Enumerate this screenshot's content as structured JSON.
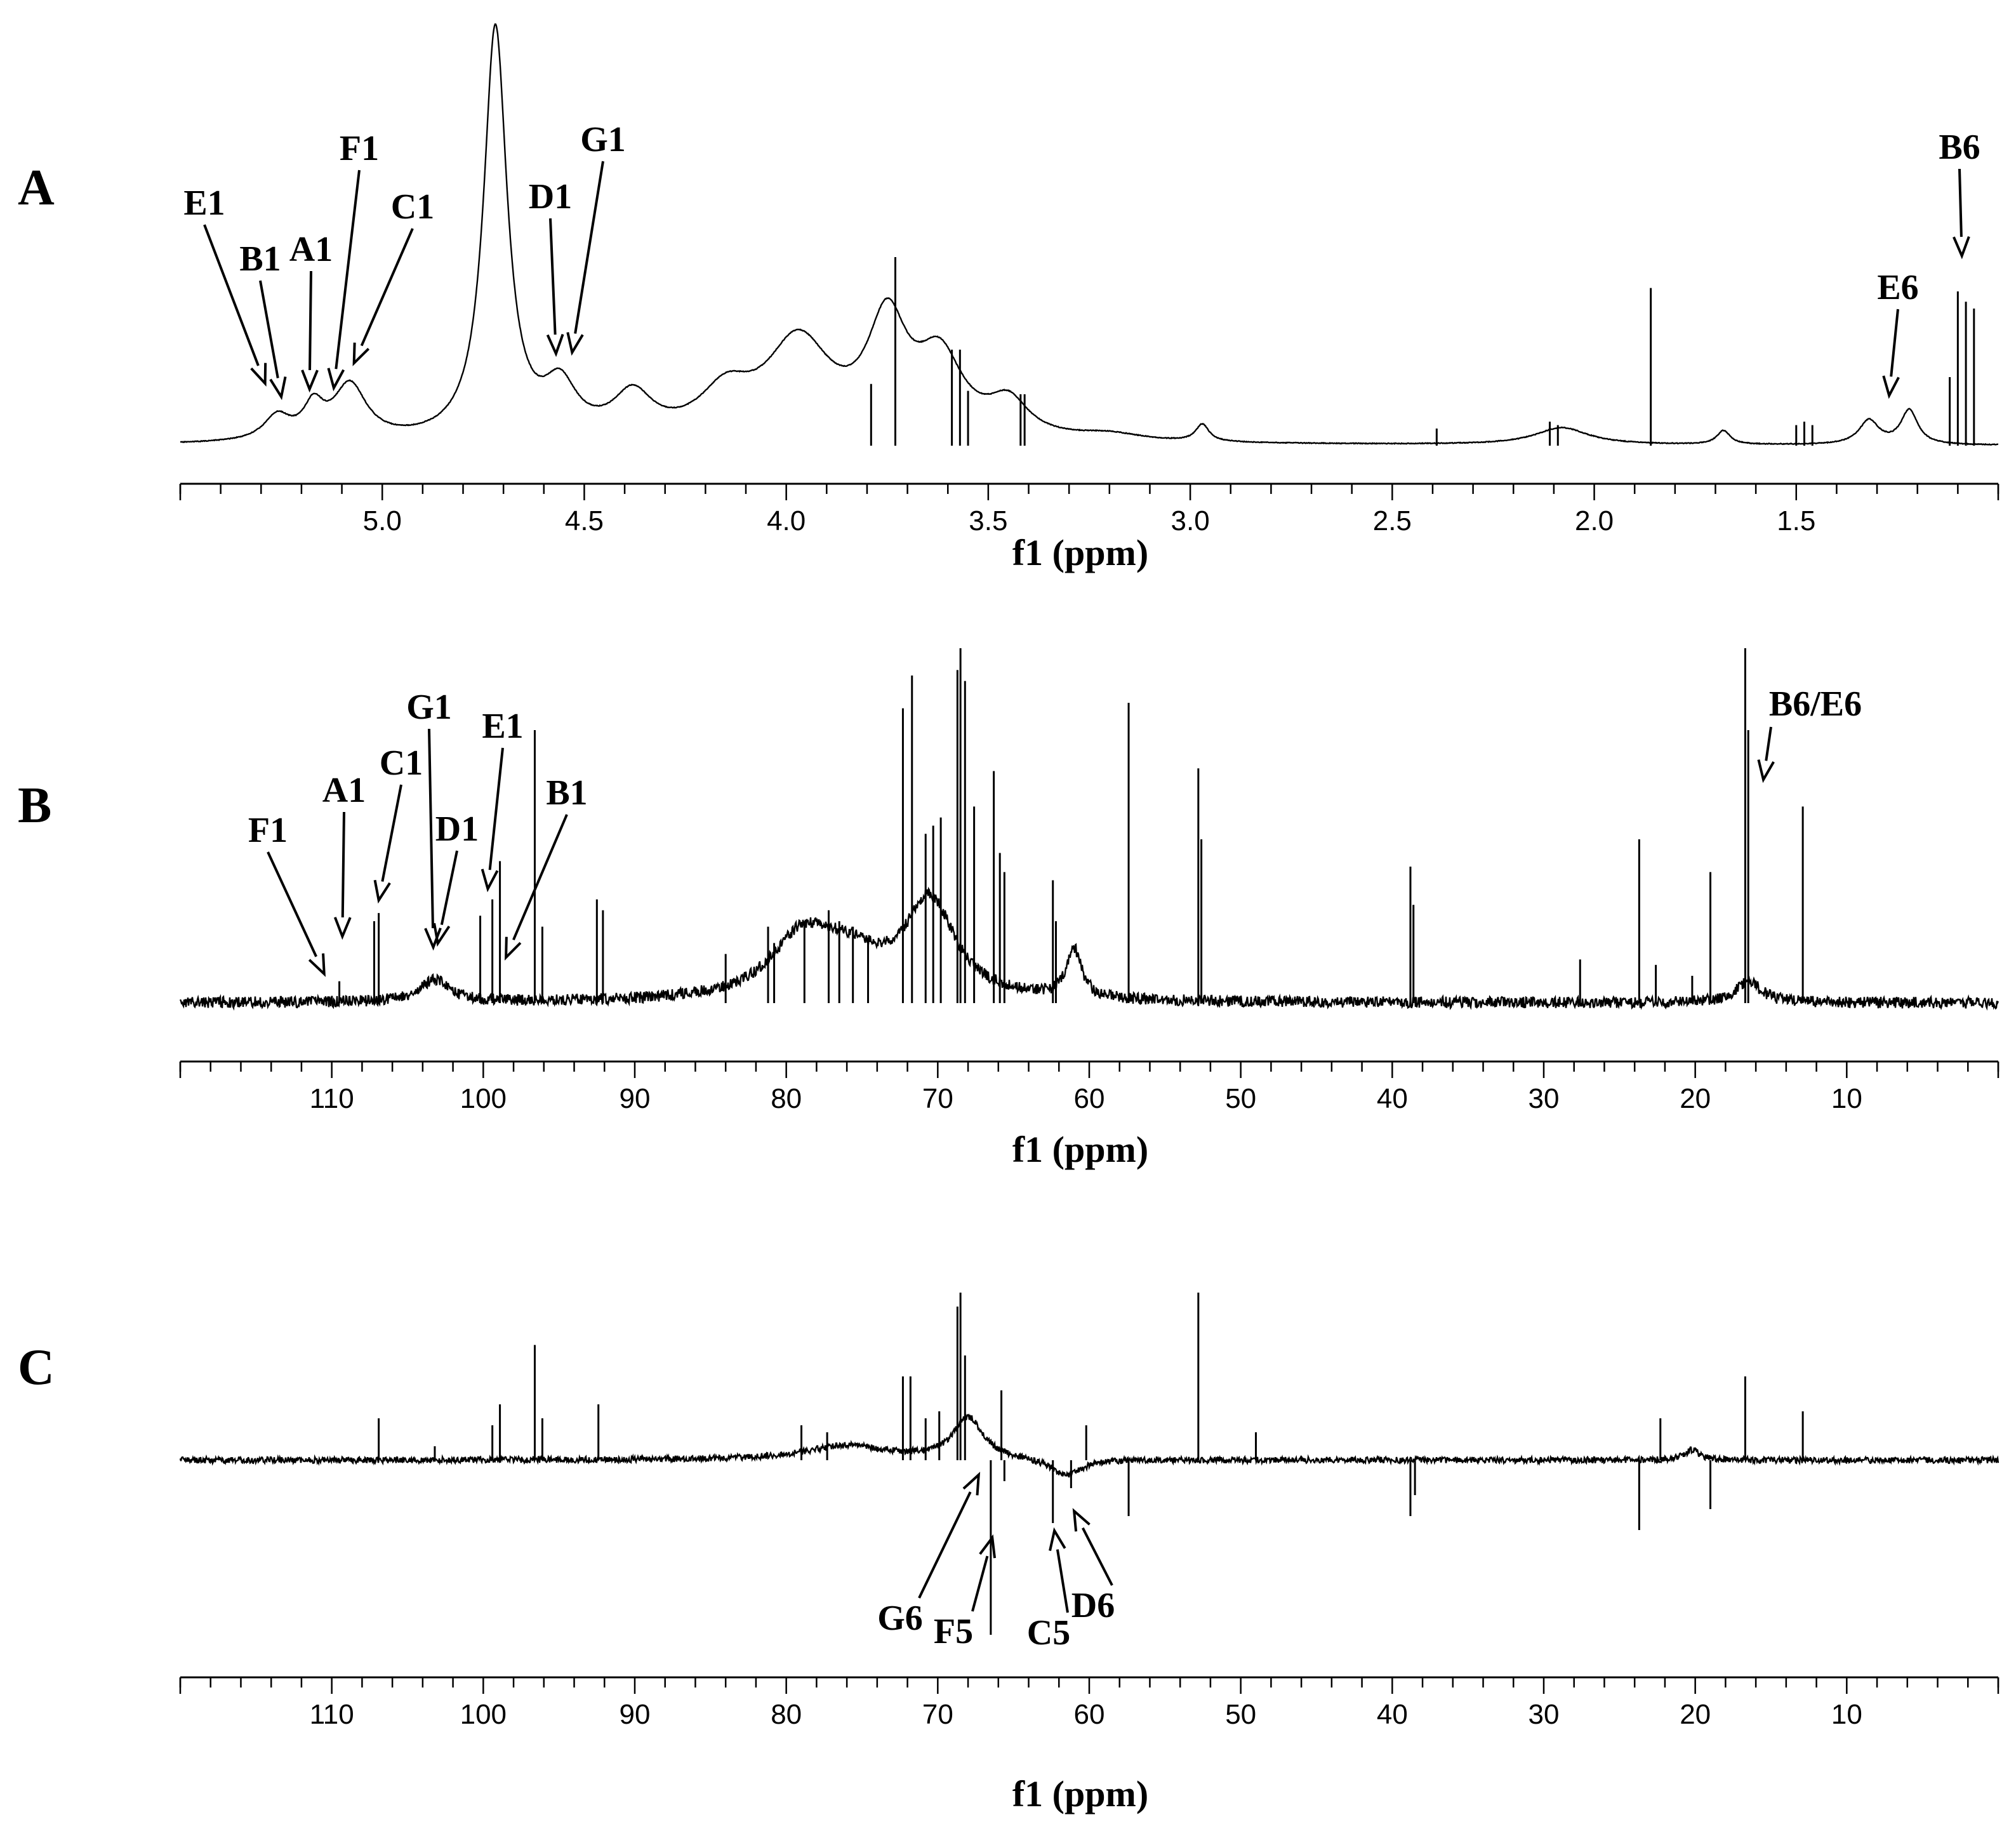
{
  "colors": {
    "line": "#000000",
    "background": "#ffffff"
  },
  "chart_data": [
    {
      "panel": "A",
      "type": "line",
      "xlabel": "f1 (ppm)",
      "xlim": [
        5.5,
        1.0
      ],
      "reversed_x": true,
      "ticks": [
        {
          "value": 5.0,
          "label": "5.0"
        },
        {
          "value": 4.5,
          "label": "4.5"
        },
        {
          "value": 4.0,
          "label": "4.0"
        },
        {
          "value": 3.5,
          "label": "3.5"
        },
        {
          "value": 3.0,
          "label": "3.0"
        },
        {
          "value": 2.5,
          "label": "2.5"
        },
        {
          "value": 2.0,
          "label": "2.0"
        },
        {
          "value": 1.5,
          "label": "1.5"
        }
      ],
      "broad_bands": [
        {
          "center": 5.26,
          "width": 0.04,
          "height": 0.07
        },
        {
          "center": 5.17,
          "width": 0.03,
          "height": 0.09
        },
        {
          "center": 5.08,
          "width": 0.05,
          "height": 0.16
        },
        {
          "center": 4.72,
          "width": 0.035,
          "height": 1.2
        },
        {
          "center": 4.56,
          "width": 0.05,
          "height": 0.14
        },
        {
          "center": 4.38,
          "width": 0.06,
          "height": 0.12
        },
        {
          "center": 4.15,
          "width": 0.08,
          "height": 0.12
        },
        {
          "center": 3.97,
          "width": 0.1,
          "height": 0.28
        },
        {
          "center": 3.75,
          "width": 0.06,
          "height": 0.32
        },
        {
          "center": 3.62,
          "width": 0.07,
          "height": 0.22
        },
        {
          "center": 3.45,
          "width": 0.06,
          "height": 0.1
        },
        {
          "center": 3.2,
          "width": 0.1,
          "height": 0.02
        },
        {
          "center": 2.97,
          "width": 0.02,
          "height": 0.05
        },
        {
          "center": 2.08,
          "width": 0.08,
          "height": 0.05
        },
        {
          "center": 1.68,
          "width": 0.02,
          "height": 0.04
        },
        {
          "center": 1.32,
          "width": 0.03,
          "height": 0.07
        },
        {
          "center": 1.22,
          "width": 0.025,
          "height": 0.1
        }
      ],
      "sharp_peaks": [
        {
          "x": 3.73,
          "height": 0.55
        },
        {
          "x": 3.79,
          "height": 0.18
        },
        {
          "x": 3.59,
          "height": 0.28
        },
        {
          "x": 3.57,
          "height": 0.28
        },
        {
          "x": 3.55,
          "height": 0.16
        },
        {
          "x": 3.42,
          "height": 0.15
        },
        {
          "x": 3.41,
          "height": 0.15
        },
        {
          "x": 2.39,
          "height": 0.05
        },
        {
          "x": 2.11,
          "height": 0.07
        },
        {
          "x": 2.09,
          "height": 0.06
        },
        {
          "x": 1.86,
          "height": 0.46
        },
        {
          "x": 1.5,
          "height": 0.06
        },
        {
          "x": 1.48,
          "height": 0.07
        },
        {
          "x": 1.46,
          "height": 0.06
        },
        {
          "x": 1.08,
          "height": 0.42
        },
        {
          "x": 1.1,
          "height": 0.45
        },
        {
          "x": 1.06,
          "height": 0.4
        },
        {
          "x": 1.12,
          "height": 0.2
        }
      ],
      "annotations": [
        {
          "label": "E1",
          "arrow_tip": 5.29
        },
        {
          "label": "B1",
          "arrow_tip": 5.25
        },
        {
          "label": "A1",
          "arrow_tip": 5.18
        },
        {
          "label": "F1",
          "arrow_tip": 5.12
        },
        {
          "label": "C1",
          "arrow_tip": 5.07
        },
        {
          "label": "D1",
          "arrow_tip": 4.57
        },
        {
          "label": "G1",
          "arrow_tip": 4.53
        },
        {
          "label": "E6",
          "arrow_tip": 1.27
        },
        {
          "label": "B6",
          "arrow_tip": 1.09
        }
      ]
    },
    {
      "panel": "B",
      "type": "line",
      "xlabel": "f1 (ppm)",
      "xlim": [
        120,
        0
      ],
      "reversed_x": true,
      "ticks": [
        {
          "value": 110,
          "label": "110"
        },
        {
          "value": 100,
          "label": "100"
        },
        {
          "value": 90,
          "label": "90"
        },
        {
          "value": 80,
          "label": "80"
        },
        {
          "value": 70,
          "label": "70"
        },
        {
          "value": 60,
          "label": "60"
        },
        {
          "value": 50,
          "label": "50"
        },
        {
          "value": 40,
          "label": "40"
        },
        {
          "value": 30,
          "label": "30"
        },
        {
          "value": 20,
          "label": "20"
        },
        {
          "value": 10,
          "label": "10"
        }
      ],
      "broad_bands": [
        {
          "center": 103.2,
          "width": 1.2,
          "height": 0.08
        },
        {
          "center": 79.0,
          "width": 2.5,
          "height": 0.2
        },
        {
          "center": 76.0,
          "width": 3.0,
          "height": 0.14
        },
        {
          "center": 70.5,
          "width": 2.0,
          "height": 0.35
        },
        {
          "center": 61.0,
          "width": 0.6,
          "height": 0.18
        },
        {
          "center": 16.5,
          "width": 1.0,
          "height": 0.08
        }
      ],
      "sharp_peaks": [
        {
          "x": 109.5,
          "height": 0.08
        },
        {
          "x": 107.2,
          "height": 0.3
        },
        {
          "x": 106.9,
          "height": 0.33
        },
        {
          "x": 100.2,
          "height": 0.32
        },
        {
          "x": 99.4,
          "height": 0.38
        },
        {
          "x": 98.9,
          "height": 0.52
        },
        {
          "x": 96.6,
          "height": 1.0
        },
        {
          "x": 96.1,
          "height": 0.28
        },
        {
          "x": 92.5,
          "height": 0.38
        },
        {
          "x": 92.1,
          "height": 0.34
        },
        {
          "x": 84.0,
          "height": 0.18
        },
        {
          "x": 81.2,
          "height": 0.28
        },
        {
          "x": 80.8,
          "height": 0.22
        },
        {
          "x": 78.8,
          "height": 0.3
        },
        {
          "x": 77.2,
          "height": 0.34
        },
        {
          "x": 76.5,
          "height": 0.3
        },
        {
          "x": 75.6,
          "height": 0.28
        },
        {
          "x": 74.6,
          "height": 0.24
        },
        {
          "x": 72.3,
          "height": 1.08
        },
        {
          "x": 71.7,
          "height": 1.2
        },
        {
          "x": 70.8,
          "height": 0.62
        },
        {
          "x": 70.3,
          "height": 0.65
        },
        {
          "x": 69.8,
          "height": 0.68
        },
        {
          "x": 68.7,
          "height": 1.22
        },
        {
          "x": 68.5,
          "height": 1.3
        },
        {
          "x": 68.2,
          "height": 1.18
        },
        {
          "x": 67.6,
          "height": 0.72
        },
        {
          "x": 66.3,
          "height": 0.85
        },
        {
          "x": 65.9,
          "height": 0.55
        },
        {
          "x": 65.6,
          "height": 0.48
        },
        {
          "x": 62.4,
          "height": 0.45
        },
        {
          "x": 62.2,
          "height": 0.3
        },
        {
          "x": 57.4,
          "height": 1.1
        },
        {
          "x": 52.8,
          "height": 0.86
        },
        {
          "x": 52.6,
          "height": 0.6
        },
        {
          "x": 38.8,
          "height": 0.5
        },
        {
          "x": 38.6,
          "height": 0.36
        },
        {
          "x": 27.6,
          "height": 0.16
        },
        {
          "x": 23.7,
          "height": 0.6
        },
        {
          "x": 22.6,
          "height": 0.14
        },
        {
          "x": 19.0,
          "height": 0.48
        },
        {
          "x": 20.2,
          "height": 0.1
        },
        {
          "x": 16.7,
          "height": 1.3
        },
        {
          "x": 16.5,
          "height": 1.0
        },
        {
          "x": 12.9,
          "height": 0.72
        }
      ],
      "annotations": [
        {
          "label": "F1",
          "arrow_tip": 110.5
        },
        {
          "label": "A1",
          "arrow_tip": 109.3
        },
        {
          "label": "C1",
          "arrow_tip": 106.9
        },
        {
          "label": "G1",
          "arrow_tip": 103.3
        },
        {
          "label": "D1",
          "arrow_tip": 103.0
        },
        {
          "label": "E1",
          "arrow_tip": 99.7
        },
        {
          "label": "B1",
          "arrow_tip": 98.5
        },
        {
          "label": "B6/E6",
          "arrow_tip": 16.0
        }
      ]
    },
    {
      "panel": "C",
      "type": "line",
      "xlabel": "f1 (ppm)",
      "xlim": [
        120,
        0
      ],
      "reversed_x": true,
      "ticks": [
        {
          "value": 110,
          "label": "110"
        },
        {
          "value": 100,
          "label": "100"
        },
        {
          "value": 90,
          "label": "90"
        },
        {
          "value": 80,
          "label": "80"
        },
        {
          "value": 70,
          "label": "70"
        },
        {
          "value": 60,
          "label": "60"
        },
        {
          "value": 50,
          "label": "50"
        },
        {
          "value": 40,
          "label": "40"
        },
        {
          "value": 30,
          "label": "30"
        },
        {
          "value": 20,
          "label": "20"
        },
        {
          "value": 10,
          "label": "10"
        }
      ],
      "broad_bands": [
        {
          "center": 76.0,
          "width": 3.5,
          "height": 0.04
        },
        {
          "center": 68.0,
          "width": 1.2,
          "height": 0.12
        },
        {
          "center": 61.5,
          "width": 1.2,
          "height": -0.05
        },
        {
          "center": 20.2,
          "width": 0.6,
          "height": 0.03
        }
      ],
      "sharp_peaks": [
        {
          "x": 106.9,
          "height": 0.12
        },
        {
          "x": 103.2,
          "height": 0.04
        },
        {
          "x": 99.4,
          "height": 0.1
        },
        {
          "x": 98.9,
          "height": 0.16
        },
        {
          "x": 96.6,
          "height": 0.33
        },
        {
          "x": 96.1,
          "height": 0.12
        },
        {
          "x": 92.4,
          "height": 0.16
        },
        {
          "x": 79.0,
          "height": 0.1
        },
        {
          "x": 77.3,
          "height": 0.08
        },
        {
          "x": 72.3,
          "height": 0.24
        },
        {
          "x": 71.8,
          "height": 0.24
        },
        {
          "x": 70.8,
          "height": 0.12
        },
        {
          "x": 69.9,
          "height": 0.14
        },
        {
          "x": 68.7,
          "height": 0.44
        },
        {
          "x": 68.5,
          "height": 0.48
        },
        {
          "x": 68.2,
          "height": 0.3
        },
        {
          "x": 66.5,
          "height": -0.5
        },
        {
          "x": 65.8,
          "height": 0.2
        },
        {
          "x": 65.6,
          "height": -0.06
        },
        {
          "x": 62.4,
          "height": -0.18
        },
        {
          "x": 60.2,
          "height": 0.1
        },
        {
          "x": 61.2,
          "height": -0.08
        },
        {
          "x": 57.4,
          "height": -0.16
        },
        {
          "x": 52.8,
          "height": 0.48
        },
        {
          "x": 49.0,
          "height": 0.08
        },
        {
          "x": 38.8,
          "height": -0.16
        },
        {
          "x": 38.5,
          "height": -0.1
        },
        {
          "x": 23.7,
          "height": -0.2
        },
        {
          "x": 22.3,
          "height": 0.12
        },
        {
          "x": 19.0,
          "height": -0.14
        },
        {
          "x": 16.7,
          "height": 0.24
        },
        {
          "x": 12.9,
          "height": 0.14
        }
      ],
      "annotations": [
        {
          "label": "G6",
          "arrow_tip": 67.3
        },
        {
          "label": "F5",
          "arrow_tip": 66.4
        },
        {
          "label": "C5",
          "arrow_tip": 62.3
        },
        {
          "label": "D6",
          "arrow_tip": 61.0
        }
      ]
    }
  ]
}
